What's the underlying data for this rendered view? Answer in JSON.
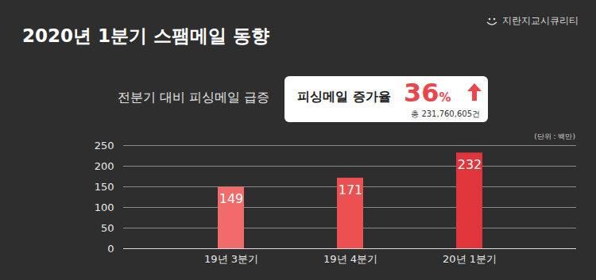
{
  "title": "2020년 1분기 스팸메일 동향",
  "brand": "지란지교시큐리티",
  "chart_data": {
    "type": "bar",
    "subtitle": "전분기 대비 피싱메일 급증",
    "annotation": {
      "label": "피싱메일 증가율",
      "value": 36,
      "suffix": "%",
      "total": {
        "prefix": "총 ",
        "value": 231760605,
        "suffix": "건"
      }
    },
    "unit_label": "(단위 : 백만)",
    "categories": [
      "19년 3분기",
      "19년 4분기",
      "20년 1분기"
    ],
    "values": [
      149,
      171,
      232
    ],
    "colors": [
      "#f26b6b",
      "#ec5050",
      "#e0353a"
    ],
    "ylim": [
      0,
      250
    ],
    "yticks": [
      0,
      50,
      100,
      150,
      200,
      250
    ],
    "grid": true,
    "data_labels": true
  }
}
